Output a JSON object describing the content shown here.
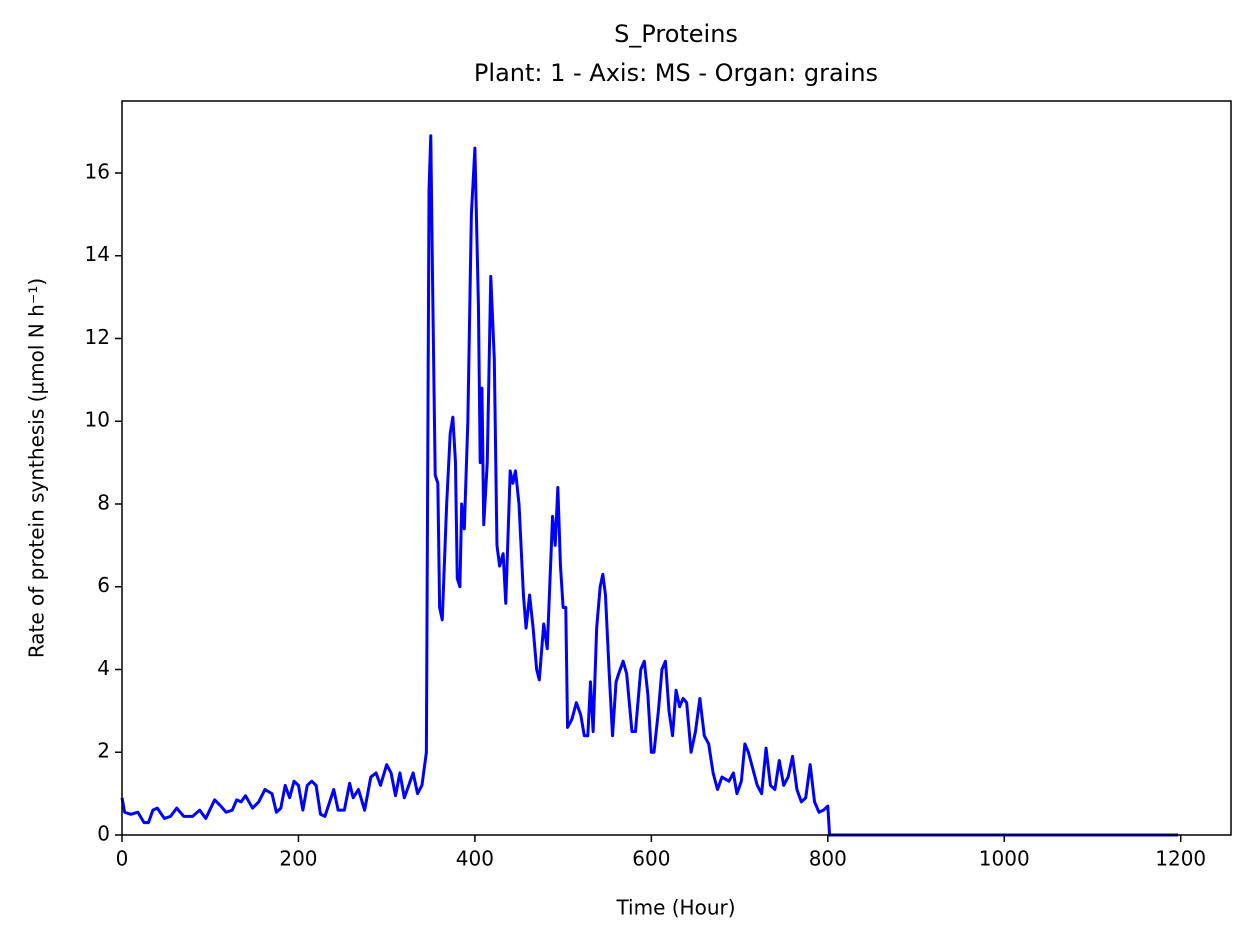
{
  "chart_data": {
    "type": "line",
    "title": "S_Proteins",
    "subtitle": "Plant: 1 - Axis: MS - Organ: grains",
    "xlabel": "Time (Hour)",
    "ylabel": "Rate of protein synthesis (µmol N h⁻¹)",
    "color": "#0000ff",
    "x": [
      0,
      3,
      10,
      18,
      25,
      30,
      35,
      40,
      48,
      55,
      62,
      70,
      80,
      88,
      95,
      105,
      112,
      118,
      125,
      130,
      135,
      140,
      148,
      155,
      162,
      170,
      175,
      180,
      185,
      190,
      195,
      200,
      205,
      210,
      215,
      220,
      225,
      230,
      240,
      245,
      252,
      258,
      262,
      268,
      275,
      282,
      288,
      293,
      300,
      305,
      310,
      315,
      320,
      330,
      335,
      340,
      345,
      348,
      350,
      352,
      355,
      358,
      360,
      363,
      368,
      372,
      375,
      378,
      380,
      383,
      385,
      388,
      392,
      396,
      400,
      404,
      406,
      408,
      410,
      414,
      418,
      422,
      425,
      428,
      432,
      435,
      440,
      443,
      446,
      450,
      455,
      458,
      462,
      466,
      470,
      473,
      478,
      482,
      488,
      491,
      494,
      497,
      500,
      503,
      505,
      510,
      515,
      520,
      524,
      528,
      531,
      534,
      538,
      542,
      545,
      548,
      552,
      556,
      560,
      563,
      568,
      572,
      578,
      582,
      588,
      592,
      596,
      600,
      603,
      608,
      612,
      616,
      620,
      624,
      628,
      632,
      636,
      640,
      645,
      650,
      655,
      660,
      665,
      670,
      675,
      680,
      688,
      693,
      697,
      702,
      706,
      710,
      715,
      720,
      725,
      730,
      735,
      740,
      745,
      750,
      755,
      760,
      765,
      770,
      775,
      780,
      785,
      790,
      795,
      800,
      802,
      1197
    ],
    "values": [
      0.9,
      0.55,
      0.5,
      0.55,
      0.3,
      0.3,
      0.6,
      0.65,
      0.4,
      0.45,
      0.65,
      0.45,
      0.45,
      0.6,
      0.4,
      0.85,
      0.7,
      0.55,
      0.6,
      0.85,
      0.8,
      0.95,
      0.65,
      0.8,
      1.1,
      1.0,
      0.55,
      0.65,
      1.2,
      0.9,
      1.3,
      1.2,
      0.6,
      1.2,
      1.3,
      1.2,
      0.5,
      0.45,
      1.1,
      0.6,
      0.6,
      1.25,
      0.9,
      1.1,
      0.6,
      1.4,
      1.5,
      1.2,
      1.7,
      1.5,
      0.95,
      1.5,
      0.9,
      1.5,
      1.0,
      1.2,
      2.0,
      15.6,
      16.9,
      13.4,
      8.7,
      8.5,
      5.5,
      5.2,
      8.0,
      9.7,
      10.1,
      9.0,
      6.2,
      6.0,
      8.0,
      7.4,
      10.0,
      15.0,
      16.6,
      12.8,
      9.0,
      10.8,
      7.5,
      9.0,
      13.5,
      11.5,
      7.0,
      6.5,
      6.8,
      5.6,
      8.8,
      8.5,
      8.8,
      8.0,
      5.8,
      5.0,
      5.8,
      5.0,
      4.0,
      3.75,
      5.1,
      4.5,
      7.7,
      7.0,
      8.4,
      6.5,
      5.5,
      5.5,
      2.6,
      2.8,
      3.2,
      2.9,
      2.4,
      2.4,
      3.7,
      2.5,
      5.0,
      6.0,
      6.3,
      5.8,
      4.0,
      2.4,
      3.7,
      3.9,
      4.2,
      3.9,
      2.5,
      2.5,
      4.0,
      4.2,
      3.4,
      2.0,
      2.0,
      3.0,
      4.0,
      4.2,
      3.0,
      2.4,
      3.5,
      3.1,
      3.3,
      3.2,
      2.0,
      2.5,
      3.3,
      2.4,
      2.2,
      1.5,
      1.1,
      1.4,
      1.3,
      1.5,
      1.0,
      1.3,
      2.2,
      2.0,
      1.6,
      1.2,
      1.0,
      2.1,
      1.2,
      1.1,
      1.8,
      1.2,
      1.4,
      1.9,
      1.1,
      0.8,
      0.9,
      1.7,
      0.8,
      0.55,
      0.6,
      0.7,
      0.0,
      0.0
    ],
    "xlim": [
      0,
      1257
    ],
    "ylim": [
      0,
      17.74
    ],
    "xticks": [
      0,
      200,
      400,
      600,
      800,
      1000,
      1200
    ],
    "yticks": [
      0,
      2,
      4,
      6,
      8,
      10,
      12,
      14,
      16
    ]
  }
}
